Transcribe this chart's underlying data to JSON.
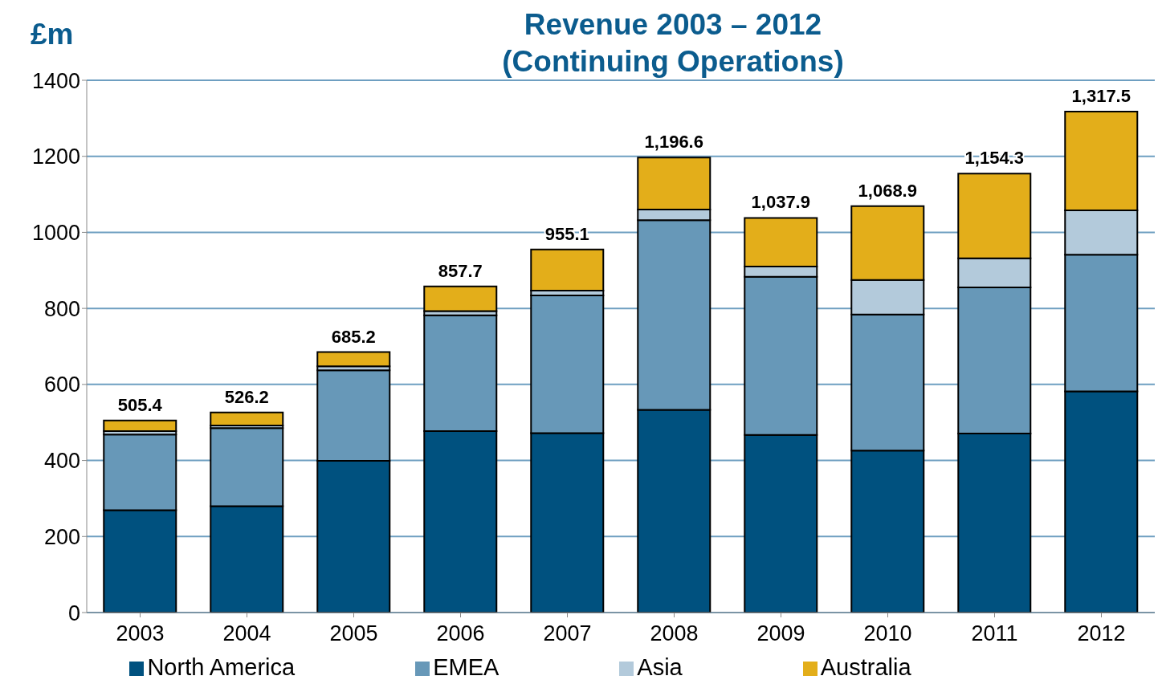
{
  "chart_data": {
    "type": "bar",
    "title": "Revenue 2003 – 2012\n(Continuing Operations)",
    "ylabel": "£m",
    "stacked": true,
    "categories": [
      "2003",
      "2004",
      "2005",
      "2006",
      "2007",
      "2008",
      "2009",
      "2010",
      "2011",
      "2012"
    ],
    "series": [
      {
        "name": "North America",
        "color": "#00517f",
        "values": [
          269,
          280,
          399,
          477,
          472,
          533,
          467,
          426,
          471,
          582
        ]
      },
      {
        "name": "EMEA",
        "color": "#6798b8",
        "values": [
          199,
          205,
          238,
          305,
          362,
          499,
          416,
          358,
          384,
          359
        ]
      },
      {
        "name": "Asia",
        "color": "#b3cadb",
        "values": [
          9,
          7,
          11,
          11,
          13,
          28,
          27,
          91,
          77,
          117
        ]
      },
      {
        "name": "Australia",
        "color": "#e3ae1a",
        "values": [
          28.4,
          34.2,
          37.2,
          64.7,
          108.1,
          136.6,
          127.9,
          193.9,
          222.3,
          259.5
        ]
      }
    ],
    "totals": [
      "505.4",
      "526.2",
      "685.2",
      "857.7",
      "955.1",
      "1,196.6",
      "1,037.9",
      "1,068.9",
      "1,154.3",
      "1,317.5"
    ],
    "ylim": [
      0,
      1400
    ],
    "yticks": [
      0,
      200,
      400,
      600,
      800,
      1000,
      1200,
      1400
    ],
    "grid": "y",
    "legend": "bottom"
  }
}
